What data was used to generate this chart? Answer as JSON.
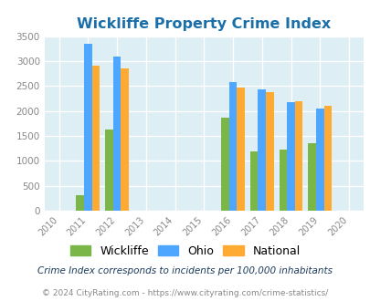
{
  "title": "Wickliffe Property Crime Index",
  "data_years": [
    2011,
    2012,
    2016,
    2017,
    2018,
    2019
  ],
  "wickliffe": [
    320,
    1620,
    1870,
    1190,
    1220,
    1360
  ],
  "ohio": [
    3340,
    3090,
    2580,
    2430,
    2180,
    2050
  ],
  "national": [
    2900,
    2850,
    2470,
    2370,
    2200,
    2100
  ],
  "wickliffe_color": "#7ab648",
  "ohio_color": "#4da6ff",
  "national_color": "#ffaa33",
  "bg_color": "#ddeef4",
  "title_color": "#1a6fa8",
  "grid_color": "#ffffff",
  "ylabel_max": 3500,
  "yticks": [
    0,
    500,
    1000,
    1500,
    2000,
    2500,
    3000,
    3500
  ],
  "bar_width": 0.27,
  "subtitle": "Crime Index corresponds to incidents per 100,000 inhabitants",
  "footer": "© 2024 CityRating.com - https://www.cityrating.com/crime-statistics/",
  "legend_labels": [
    "Wickliffe",
    "Ohio",
    "National"
  ],
  "xmin": 2010,
  "xmax": 2020,
  "subtitle_color": "#1a3a5c",
  "footer_color": "#888888",
  "tick_color": "#888888"
}
